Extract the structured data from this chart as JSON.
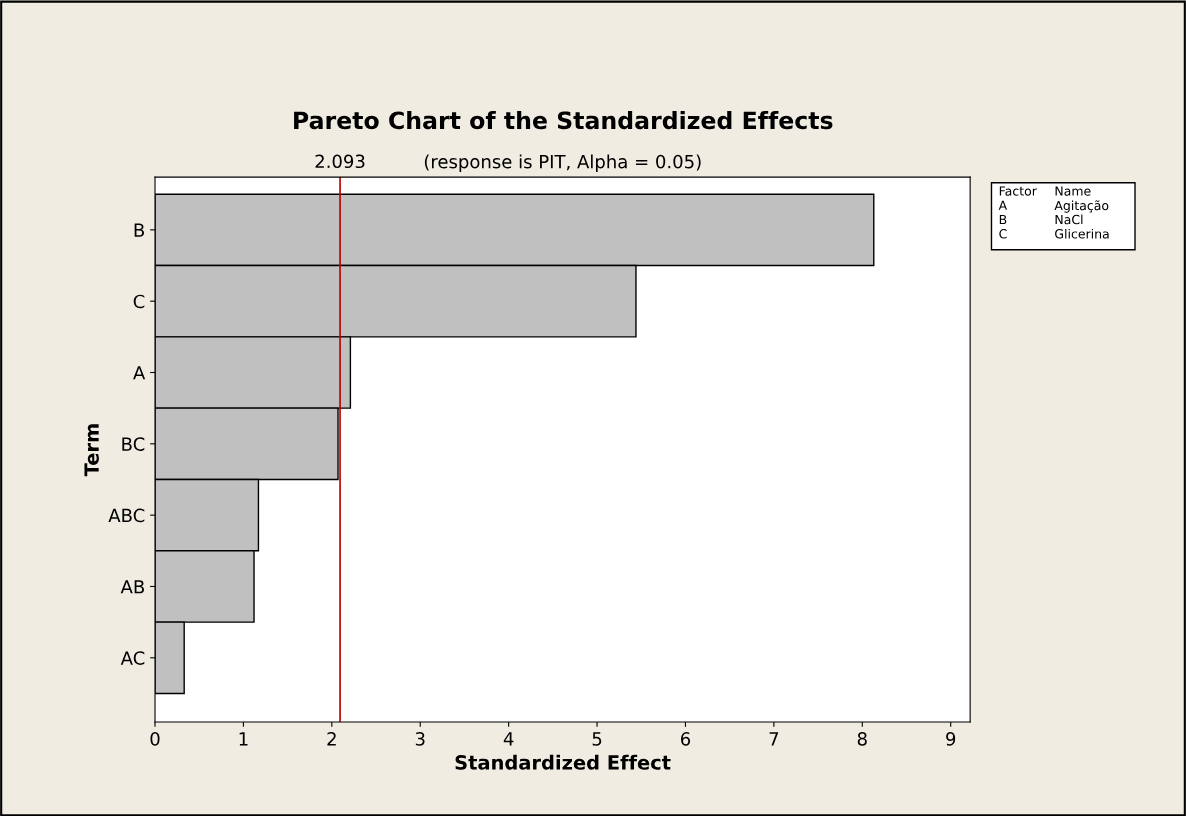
{
  "chart_data": {
    "type": "bar",
    "orientation": "horizontal",
    "title": "Pareto Chart of the Standardized Effects",
    "subtitle": "(response is PIT, Alpha = 0.05)",
    "xlabel": "Standardized Effect",
    "ylabel": "Term",
    "categories": [
      "B",
      "C",
      "A",
      "BC",
      "ABC",
      "AB",
      "AC"
    ],
    "values": [
      8.13,
      5.44,
      2.21,
      2.07,
      1.17,
      1.12,
      0.33
    ],
    "color": "#c0c0c0",
    "xlim": [
      0,
      9.22
    ],
    "xticks": [
      0,
      1,
      2,
      3,
      4,
      5,
      6,
      7,
      8,
      9
    ],
    "grid": false,
    "ref_lines": [
      {
        "axis": "x",
        "value": 2.093,
        "label": "2.093",
        "color": "#c00000"
      }
    ],
    "annotations": [
      "Factor",
      "Name",
      "A",
      "Agitação",
      "B",
      "NaCl",
      "C",
      "Glicerina"
    ]
  }
}
